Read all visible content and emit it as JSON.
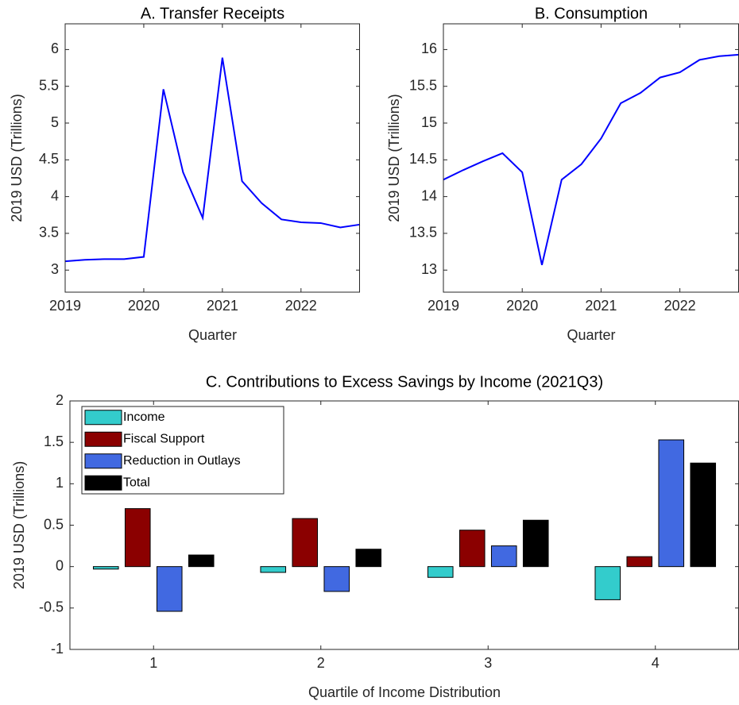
{
  "chart_data": [
    {
      "type": "line",
      "title": "A. Transfer Receipts",
      "xlabel": "Quarter",
      "ylabel": "2019 USD (Trillions)",
      "x": [
        2019,
        2019.25,
        2019.5,
        2019.75,
        2020,
        2020.25,
        2020.5,
        2020.75,
        2021,
        2021.25,
        2021.5,
        2021.75,
        2022,
        2022.25,
        2022.5,
        2022.75
      ],
      "values": [
        3.12,
        3.14,
        3.15,
        3.15,
        3.18,
        5.46,
        4.33,
        3.71,
        5.89,
        4.21,
        3.91,
        3.69,
        3.65,
        3.64,
        3.58,
        3.62
      ],
      "color": "#0000ff",
      "xlim": [
        2019,
        2022.75
      ],
      "xticks": [
        2019,
        2020,
        2021,
        2022
      ],
      "ylim": [
        2.7,
        6.35
      ],
      "yticks": [
        3,
        3.5,
        4,
        4.5,
        5,
        5.5,
        6
      ]
    },
    {
      "type": "line",
      "title": "B. Consumption",
      "xlabel": "Quarter",
      "ylabel": "2019 USD (Trillions)",
      "x": [
        2019,
        2019.25,
        2019.5,
        2019.75,
        2020,
        2020.25,
        2020.5,
        2020.75,
        2021,
        2021.25,
        2021.5,
        2021.75,
        2022,
        2022.25,
        2022.5,
        2022.75
      ],
      "values": [
        14.23,
        14.36,
        14.48,
        14.59,
        14.33,
        13.07,
        14.23,
        14.44,
        14.79,
        15.27,
        15.41,
        15.62,
        15.69,
        15.86,
        15.91,
        15.93
      ],
      "color": "#0000ff",
      "xlim": [
        2019,
        2022.75
      ],
      "xticks": [
        2019,
        2020,
        2021,
        2022
      ],
      "ylim": [
        12.7,
        16.35
      ],
      "yticks": [
        13,
        13.5,
        14,
        14.5,
        15,
        15.5,
        16
      ]
    },
    {
      "type": "bar",
      "title": "C. Contributions to Excess Savings by Income (2021Q3)",
      "xlabel": "Quartile of Income Distribution",
      "ylabel": "2019 USD (Trillions)",
      "categories": [
        1,
        2,
        3,
        4
      ],
      "series": [
        {
          "name": "Income",
          "color": "#33cccc",
          "values": [
            -0.03,
            -0.07,
            -0.13,
            -0.4
          ]
        },
        {
          "name": "Fiscal Support",
          "color": "#8b0000",
          "values": [
            0.7,
            0.58,
            0.44,
            0.12
          ]
        },
        {
          "name": "Reduction in Outlays",
          "color": "#4169e1",
          "values": [
            -0.54,
            -0.3,
            0.25,
            1.53
          ]
        },
        {
          "name": "Total",
          "color": "#000000",
          "values": [
            0.14,
            0.21,
            0.56,
            1.25
          ]
        }
      ],
      "legend": "northwest",
      "ylim": [
        -1,
        2
      ],
      "yticks": [
        -1,
        -0.5,
        0,
        0.5,
        1,
        1.5,
        2
      ]
    }
  ]
}
